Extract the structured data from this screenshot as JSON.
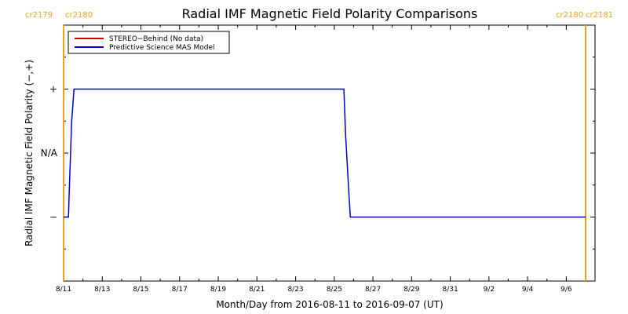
{
  "chart_data": {
    "type": "line",
    "title": "Radial IMF Magnetic Field Polarity Comparisons",
    "xlabel": "Month/Day from 2016-08-11 to 2016-09-07 (UT)",
    "ylabel": "Radial IMF Magnetic Field Polarity (−,+)",
    "x_tick_labels": [
      "8/11",
      "8/13",
      "8/15",
      "8/17",
      "8/19",
      "8/21",
      "8/23",
      "8/25",
      "8/27",
      "8/29",
      "8/31",
      "9/2",
      "9/4",
      "9/6"
    ],
    "y_tick_labels": [
      "+",
      "N/A",
      "−"
    ],
    "y_tick_values": [
      1,
      0,
      -1
    ],
    "xlim": [
      "2016-08-11",
      "2016-09-07"
    ],
    "ylim": [
      -2,
      2
    ],
    "legend_position": "top-left",
    "series": [
      {
        "name": "STEREO−Behind (No data)",
        "color": "#cc0000",
        "x": [],
        "y": []
      },
      {
        "name": "Predictive Science MAS Model",
        "color": "#0000cc",
        "x": [
          "2016-08-11T00:00",
          "2016-08-11T06:00",
          "2016-08-11T07:00",
          "2016-08-11T10:00",
          "2016-08-11T13:00",
          "2016-08-25T12:00",
          "2016-08-25T14:00",
          "2016-08-25T18:00",
          "2016-08-25T20:00",
          "2016-09-07T00:00"
        ],
        "y": [
          -1,
          -1,
          -0.6,
          0.5,
          1,
          1,
          0.3,
          -0.6,
          -1,
          -1
        ]
      }
    ],
    "carrington_labels": [
      {
        "left": "cr2179",
        "right": "cr2180",
        "date": "2016-08-11"
      },
      {
        "left": "cr2180",
        "right": "cr2181",
        "date": "2016-09-07"
      }
    ],
    "carrington_color": "#f0a020"
  }
}
